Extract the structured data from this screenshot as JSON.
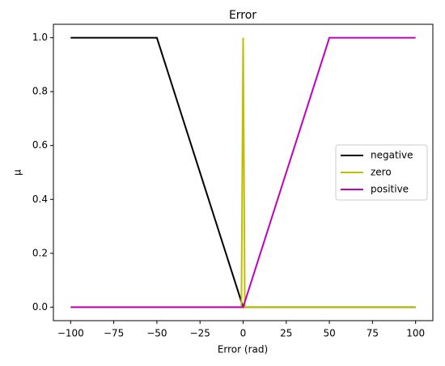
{
  "chart_data": {
    "type": "line",
    "title": "Error",
    "xlabel": "Error (rad)",
    "ylabel": "μ",
    "x": [
      -100,
      -50,
      -1,
      0,
      1,
      50,
      100
    ],
    "series": [
      {
        "name": "negative",
        "color": "#000000",
        "values": [
          1,
          1,
          0.02,
          0,
          0,
          0,
          0
        ]
      },
      {
        "name": "zero",
        "color": "#bfbf00",
        "values": [
          0,
          0,
          0,
          1,
          0,
          0,
          0
        ]
      },
      {
        "name": "positive",
        "color": "#bf00bf",
        "values": [
          0,
          0,
          0,
          0,
          0.02,
          1,
          1
        ]
      }
    ],
    "xlim": [
      -110,
      110
    ],
    "xticks": [
      {
        "value": -100,
        "label": "−100"
      },
      {
        "value": -75,
        "label": "−75"
      },
      {
        "value": -50,
        "label": "−50"
      },
      {
        "value": -25,
        "label": "−25"
      },
      0,
      25,
      50,
      75,
      100
    ],
    "ylim": [
      -0.05,
      1.05
    ],
    "yticks": [
      {
        "value": 0,
        "label": "0.0"
      },
      {
        "value": 0.2,
        "label": "0.2"
      },
      {
        "value": 0.4,
        "label": "0.4"
      },
      {
        "value": 0.6,
        "label": "0.6"
      },
      {
        "value": 0.8,
        "label": "0.8"
      },
      {
        "value": 1,
        "label": "1.0"
      }
    ],
    "legend": "center right"
  }
}
